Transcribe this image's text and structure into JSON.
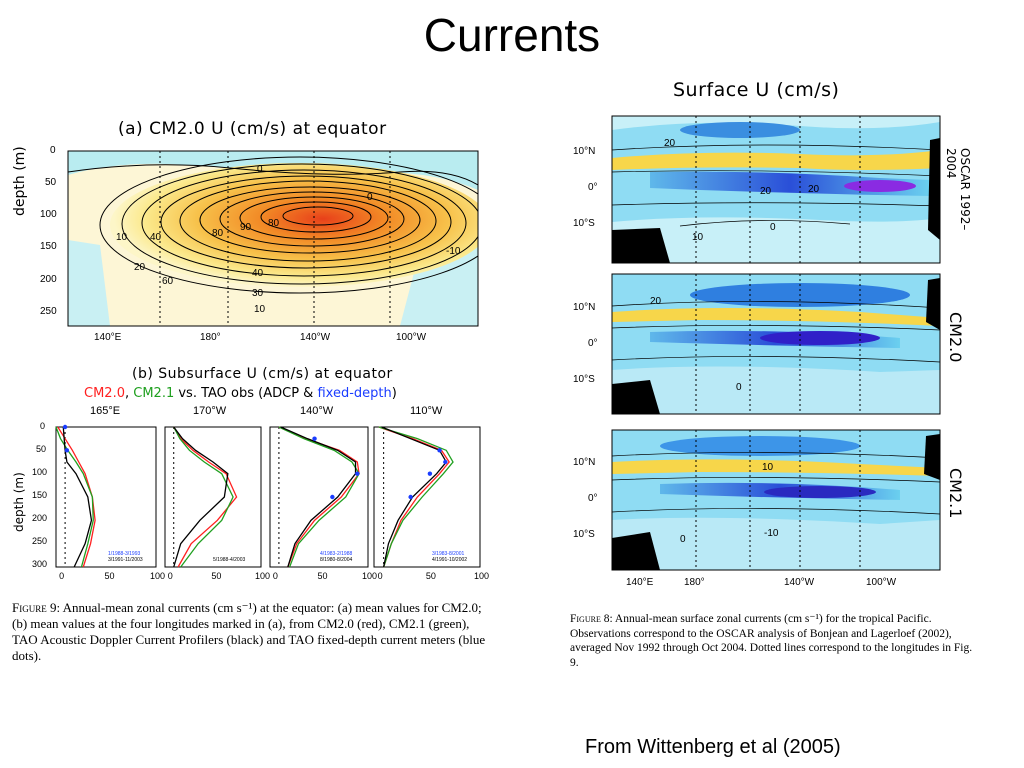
{
  "slide": {
    "title": "Currents",
    "credit": "From Wittenberg et al (2005)"
  },
  "fig9": {
    "panel_a_title": "(a) CM2.0 U (cm/s) at equator",
    "panel_a_ylabel": "depth (m)",
    "panel_a_yticks": [
      "0",
      "50",
      "100",
      "150",
      "200",
      "250"
    ],
    "panel_a_xticks": [
      "140°E",
      "180°",
      "140°W",
      "100°W"
    ],
    "panel_a_contour_labels": [
      "0",
      "10",
      "20",
      "30",
      "40",
      "50",
      "60",
      "70",
      "80",
      "90",
      "80",
      "0",
      "0",
      "50",
      "40",
      "30",
      "20",
      "10",
      "0",
      "-10"
    ],
    "panel_b_title": "(b) Subsurface U (cm/s) at equator",
    "panel_b_legend": {
      "cm20": "CM2.0",
      "comma": ",",
      "cm21": "CM2.1",
      "vs": "vs. TAO obs (ADCP &",
      "fd": "fixed-depth",
      "close": ")"
    },
    "panel_b_ylabel": "depth (m)",
    "panel_b_yticks": [
      "0",
      "50",
      "100",
      "150",
      "200",
      "250",
      "300"
    ],
    "panel_b_xticks": [
      "0",
      "50",
      "100"
    ],
    "profile_longitudes": [
      "165°E",
      "170°W",
      "140°W",
      "110°W"
    ],
    "profile_dates": [
      [
        "1/1988-3/1993",
        "3/1991-11/2003"
      ],
      [
        "",
        "5/1988-4/2003"
      ],
      [
        "4/1983-2/1988",
        "8/1980-8/2004"
      ],
      [
        "3/1983-8/2001",
        "4/1991-10/2002"
      ]
    ],
    "caption_label": "Figure 9:",
    "caption_text": "Annual-mean zonal currents (cm s⁻¹) at the equator: (a) mean values for CM2.0; (b) mean values at the four longitudes marked in (a), from CM2.0 (red), CM2.1 (green), TAO Acoustic Doppler Current Profilers (black) and TAO fixed-depth current meters (blue dots)."
  },
  "fig8": {
    "title": "Surface U (cm/s)",
    "lat_ticks": [
      "10°N",
      "0°",
      "10°S"
    ],
    "lon_ticks": [
      "140°E",
      "180°",
      "140°W",
      "100°W"
    ],
    "panel_labels": [
      "OSCAR 1992–2004",
      "CM2.0",
      "CM2.1"
    ],
    "contour_labels": [
      [
        "20",
        "20",
        "20",
        "0",
        "10",
        "0"
      ],
      [
        "20",
        "0",
        "0"
      ],
      [
        "10",
        "-10",
        "0"
      ]
    ],
    "caption_label": "Figure 8:",
    "caption_text": "Annual-mean surface zonal currents (cm s⁻¹) for the tropical Pacific. Observations correspond to the OSCAR analysis of Bonjean and Lagerloef (2002), averaged Nov 1992 through Oct 2004. Dotted lines correspond to the longitudes in Fig. 9."
  },
  "colors": {
    "cm20": "#ff2020",
    "cm21": "#20a020",
    "obs": "#000000",
    "fixed": "#1a3cff"
  },
  "chart_data": [
    {
      "type": "heatmap",
      "title": "(a) CM2.0 U (cm/s) at equator",
      "xlabel": "",
      "ylabel": "depth (m)",
      "xlim": [
        "140°E",
        "80°W"
      ],
      "ylim": [
        0,
        270
      ],
      "contour_levels": [
        -10,
        0,
        10,
        20,
        30,
        40,
        50,
        60,
        70,
        80,
        90
      ],
      "core": {
        "value": 90,
        "longitude": "140°W",
        "depth": 110
      }
    },
    {
      "type": "line",
      "title": "(b) Subsurface U (cm/s) at equator",
      "xlabel": "",
      "ylabel": "depth (m)",
      "xlim": [
        -10,
        100
      ],
      "ylim": [
        0,
        300
      ],
      "panels": [
        {
          "longitude": "165°E",
          "depth": [
            0,
            25,
            50,
            75,
            100,
            150,
            200,
            250,
            300
          ],
          "series": [
            {
              "name": "CM2.0",
              "values": [
                -8,
                0,
                8,
                15,
                22,
                30,
                33,
                28,
                20
              ]
            },
            {
              "name": "CM2.1",
              "values": [
                -10,
                -5,
                3,
                12,
                20,
                30,
                31,
                25,
                18
              ]
            },
            {
              "name": "ADCP",
              "values": [
                -2,
                -1,
                0,
                2,
                12,
                25,
                29,
                22,
                10
              ]
            },
            {
              "name": "fixed-depth",
              "values": [
                0,
                null,
                2,
                null,
                null,
                null,
                null,
                null,
                null
              ]
            }
          ]
        },
        {
          "longitude": "170°W",
          "depth": [
            0,
            25,
            50,
            75,
            100,
            150,
            200,
            250,
            300
          ],
          "series": [
            {
              "name": "CM2.0",
              "values": [
                0,
                8,
                22,
                40,
                60,
                72,
                50,
                20,
                5
              ]
            },
            {
              "name": "CM2.1",
              "values": [
                0,
                7,
                18,
                35,
                55,
                68,
                55,
                28,
                8
              ]
            },
            {
              "name": "ADCP",
              "values": [
                0,
                10,
                25,
                45,
                62,
                58,
                30,
                8,
                0
              ]
            },
            {
              "name": "fixed-depth",
              "values": [
                null,
                null,
                null,
                null,
                null,
                null,
                null,
                null,
                null
              ]
            }
          ]
        },
        {
          "longitude": "140°W",
          "depth": [
            0,
            25,
            50,
            75,
            100,
            150,
            200,
            250,
            300
          ],
          "series": [
            {
              "name": "CM2.0",
              "values": [
                0,
                30,
                68,
                88,
                90,
                70,
                40,
                20,
                10
              ]
            },
            {
              "name": "CM2.1",
              "values": [
                0,
                28,
                62,
                82,
                90,
                75,
                45,
                22,
                12
              ]
            },
            {
              "name": "ADCP",
              "values": [
                2,
                32,
                66,
                86,
                86,
                66,
                36,
                18,
                10
              ]
            },
            {
              "name": "fixed-depth",
              "values": [
                null,
                40,
                null,
                null,
                88,
                60,
                null,
                null,
                null
              ]
            }
          ]
        },
        {
          "longitude": "110°W",
          "depth": [
            0,
            25,
            50,
            75,
            100,
            150,
            200,
            250,
            300
          ],
          "series": [
            {
              "name": "CM2.0",
              "values": [
                -5,
                30,
                60,
                68,
                58,
                35,
                18,
                8,
                0
              ]
            },
            {
              "name": "CM2.1",
              "values": [
                -5,
                35,
                65,
                72,
                62,
                40,
                20,
                8,
                0
              ]
            },
            {
              "name": "ADCP",
              "values": [
                -2,
                28,
                58,
                65,
                55,
                30,
                15,
                5,
                0
              ]
            },
            {
              "name": "fixed-depth",
              "values": [
                null,
                null,
                58,
                64,
                48,
                28,
                null,
                null,
                null
              ]
            }
          ]
        }
      ]
    },
    {
      "type": "heatmap",
      "title": "Surface U (cm/s)",
      "panels": [
        "OSCAR 1992–2004",
        "CM2.0",
        "CM2.1"
      ],
      "xlim": [
        "130°E",
        "80°W"
      ],
      "ylim": [
        "15°S",
        "15°N"
      ],
      "contour_levels": [
        -20,
        -10,
        0,
        10,
        20
      ],
      "features": [
        "westward flow near equator (negative)",
        "eastward countercurrent near 5–8°N (positive)"
      ]
    }
  ]
}
